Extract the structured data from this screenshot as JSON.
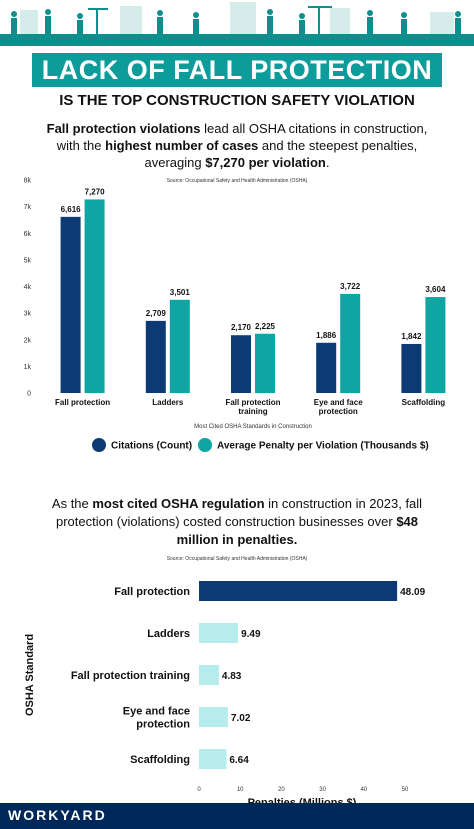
{
  "header": {
    "banner_title": "LACK OF FALL PROTECTION",
    "subtitle": "IS THE TOP CONSTRUCTION SAFETY VIOLATION"
  },
  "intro1": {
    "t1": "Fall protection violations",
    "t2": " lead all OSHA citations in construction,",
    "t3": "with the ",
    "t4": "highest number of cases",
    "t5": " and the steepest penalties,",
    "t6": "averaging ",
    "t7": "$7,270 per violation",
    "t8": "."
  },
  "intro2": {
    "t1": "As the ",
    "t2": "most cited OSHA regulation",
    "t3": " in construction in 2023, fall protection (violations) costed construction businesses over ",
    "t4": "$48 million in penalties."
  },
  "footer": {
    "logo": "WORKYARD"
  },
  "colors": {
    "navy": "#0b3a75",
    "teal": "#0ea5a3",
    "light_teal": "#b7ecec",
    "dark_bar": "#0b3a75",
    "banner": "#0e9c9a",
    "footer": "#00275a"
  },
  "chart_data": [
    {
      "type": "bar",
      "source": "Source: Occupational Safety and Health Administration (OSHA)",
      "categories": [
        "Fall protection",
        "Ladders",
        "Fall protection training",
        "Eye and face protection",
        "Scaffolding"
      ],
      "category_lines": [
        [
          "Fall protection"
        ],
        [
          "Ladders"
        ],
        [
          "Fall protection",
          "training"
        ],
        [
          "Eye and face",
          "protection"
        ],
        [
          "Scaffolding"
        ]
      ],
      "series": [
        {
          "name": "Citations (Count)",
          "values": [
            6616,
            2709,
            2170,
            1886,
            1842
          ],
          "labels": [
            "6,616",
            "2,709",
            "2,170",
            "1,886",
            "1,842"
          ]
        },
        {
          "name": "Average Penalty per Violation (Thousands $)",
          "values": [
            7270,
            3501,
            2225,
            3722,
            3604
          ],
          "labels": [
            "7,270",
            "3,501",
            "2,225",
            "3,722",
            "3,604"
          ]
        }
      ],
      "xlabel": "Most Cited OSHA Standards in Construction",
      "ylabel": "",
      "ylim": [
        0,
        8000
      ],
      "yticks": [
        "0",
        "1k",
        "2k",
        "3k",
        "4k",
        "5k",
        "6k",
        "7k",
        "8k"
      ],
      "grid": false,
      "legend_position": "bottom"
    },
    {
      "type": "bar",
      "orientation": "horizontal",
      "source": "Source: Occupational Safety and Health Administration (OSHA)",
      "categories": [
        "Fall protection",
        "Ladders",
        "Fall protection training",
        "Eye and face protection",
        "Scaffolding"
      ],
      "category_lines": [
        [
          "Fall protection"
        ],
        [
          "Ladders"
        ],
        [
          "Fall protection training"
        ],
        [
          "Eye and face",
          "protection"
        ],
        [
          "Scaffolding"
        ]
      ],
      "values": [
        48.09,
        9.49,
        4.83,
        7.02,
        6.64
      ],
      "labels": [
        "48.09",
        "9.49",
        "4.83",
        "7.02",
        "6.64"
      ],
      "xlabel": "Penalties (Millions $)",
      "ylabel": "OSHA Standard",
      "xlim": [
        0,
        50
      ],
      "xticks": [
        "0",
        "10",
        "20",
        "30",
        "40",
        "50"
      ],
      "grid": false
    }
  ]
}
